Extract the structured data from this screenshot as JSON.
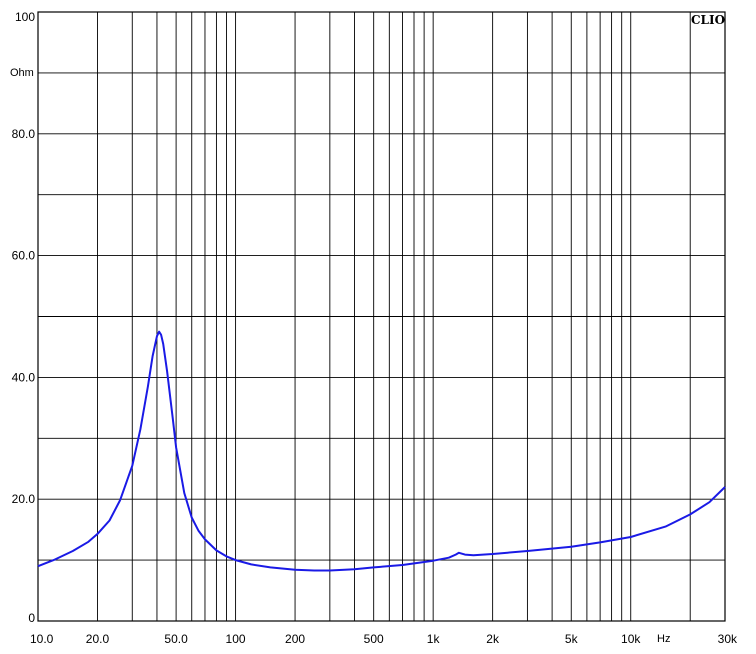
{
  "chart_data": {
    "type": "line",
    "brand": "CLIO",
    "x_scale": "log",
    "xlim": [
      10,
      30000
    ],
    "ylim": [
      0,
      100
    ],
    "y_unit": "Ohm",
    "x_unit": "Hz",
    "grid": true,
    "colors": {
      "line": "#1a1ae6",
      "grid": "#000000",
      "background": "#ffffff"
    },
    "x_gridlines": [
      20,
      30,
      40,
      50,
      60,
      70,
      80,
      90,
      100,
      200,
      300,
      400,
      500,
      600,
      700,
      800,
      900,
      1000,
      2000,
      3000,
      4000,
      5000,
      6000,
      7000,
      8000,
      9000,
      10000,
      20000
    ],
    "y_gridlines": [
      10,
      20,
      30,
      40,
      50,
      60,
      70,
      80,
      90
    ],
    "x_ticks": [
      {
        "value": 10,
        "label": "10.0"
      },
      {
        "value": 20,
        "label": "20.0"
      },
      {
        "value": 50,
        "label": "50.0"
      },
      {
        "value": 100,
        "label": "100"
      },
      {
        "value": 200,
        "label": "200"
      },
      {
        "value": 500,
        "label": "500"
      },
      {
        "value": 1000,
        "label": "1k"
      },
      {
        "value": 2000,
        "label": "2k"
      },
      {
        "value": 5000,
        "label": "5k"
      },
      {
        "value": 10000,
        "label": "10k"
      },
      {
        "value": 30000,
        "label": "30k"
      }
    ],
    "y_ticks": [
      {
        "value": 0,
        "label": "0"
      },
      {
        "value": 20,
        "label": "20.0"
      },
      {
        "value": 40,
        "label": "40.0"
      },
      {
        "value": 60,
        "label": "60.0"
      },
      {
        "value": 80,
        "label": "80.0"
      },
      {
        "value": 100,
        "label": "100"
      }
    ],
    "series": [
      {
        "points": [
          [
            10,
            9.0
          ],
          [
            12,
            10.0
          ],
          [
            15,
            11.5
          ],
          [
            18,
            13.0
          ],
          [
            20,
            14.3
          ],
          [
            23,
            16.5
          ],
          [
            26,
            19.8
          ],
          [
            30,
            25.5
          ],
          [
            33,
            31.5
          ],
          [
            36,
            38.5
          ],
          [
            38,
            43.5
          ],
          [
            40,
            46.8
          ],
          [
            41,
            47.5
          ],
          [
            42,
            47.0
          ],
          [
            43,
            45.5
          ],
          [
            45,
            41.0
          ],
          [
            48,
            33.5
          ],
          [
            50,
            28.5
          ],
          [
            55,
            21.0
          ],
          [
            60,
            17.0
          ],
          [
            65,
            14.8
          ],
          [
            70,
            13.4
          ],
          [
            80,
            11.6
          ],
          [
            90,
            10.6
          ],
          [
            100,
            10.0
          ],
          [
            120,
            9.3
          ],
          [
            150,
            8.8
          ],
          [
            200,
            8.4
          ],
          [
            250,
            8.3
          ],
          [
            300,
            8.3
          ],
          [
            400,
            8.5
          ],
          [
            500,
            8.8
          ],
          [
            700,
            9.2
          ],
          [
            1000,
            9.9
          ],
          [
            1200,
            10.4
          ],
          [
            1300,
            10.9
          ],
          [
            1350,
            11.2
          ],
          [
            1450,
            10.9
          ],
          [
            1600,
            10.8
          ],
          [
            2000,
            11.0
          ],
          [
            3000,
            11.5
          ],
          [
            5000,
            12.2
          ],
          [
            7000,
            12.9
          ],
          [
            10000,
            13.8
          ],
          [
            15000,
            15.5
          ],
          [
            20000,
            17.5
          ],
          [
            25000,
            19.5
          ],
          [
            30000,
            22.0
          ]
        ]
      }
    ]
  }
}
